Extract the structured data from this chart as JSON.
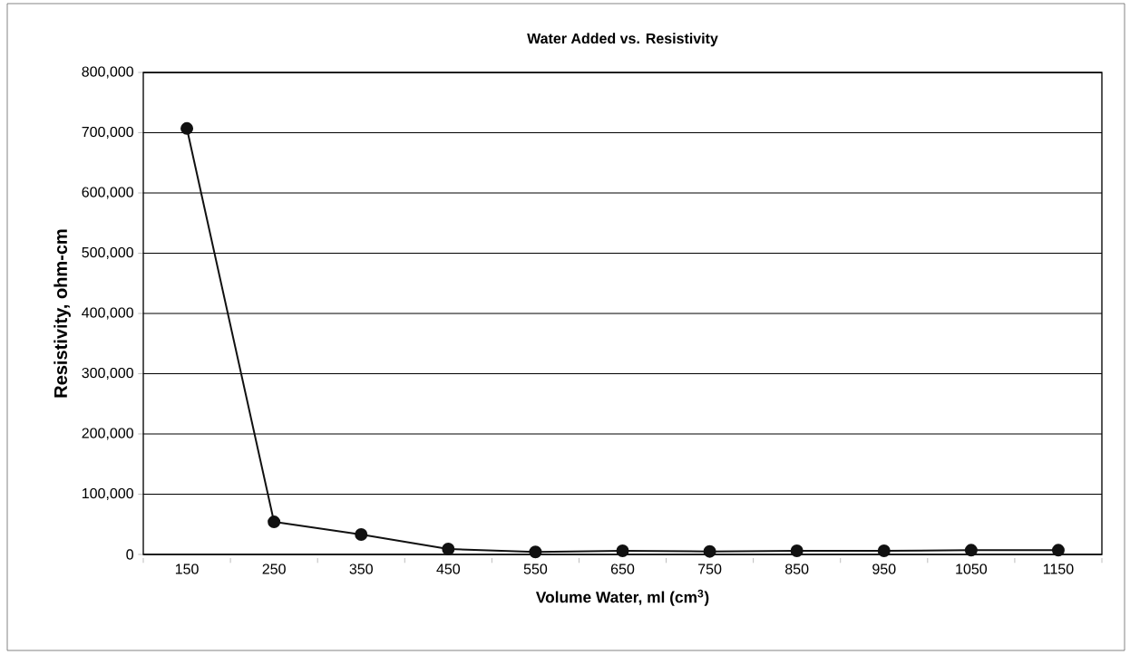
{
  "chart_data": {
    "type": "line",
    "title": "Water Added vs. Resistivity",
    "xlabel": "Volume Water, ml (cm$^{3}$)",
    "ylabel": "Resistivity, ohm-cm",
    "categories": [
      "150",
      "250",
      "350",
      "450",
      "550",
      "650",
      "750",
      "850",
      "950",
      "1050",
      "1150"
    ],
    "series": [
      {
        "color": "#111111",
        "values": [
          707000,
          54000,
          33000,
          9000,
          4000,
          6000,
          5000,
          6000,
          6000,
          7000,
          7000
        ]
      }
    ],
    "ylim": [
      0,
      800000
    ],
    "yticks": [
      {
        "value": 0,
        "label": "0"
      },
      {
        "value": 100000,
        "label": "100,000"
      },
      {
        "value": 200000,
        "label": "200,000"
      },
      {
        "value": 300000,
        "label": "300,000"
      },
      {
        "value": 400000,
        "label": "400,000"
      },
      {
        "value": 500000,
        "label": "500,000"
      },
      {
        "value": 600000,
        "label": "600,000"
      },
      {
        "value": 700000,
        "label": "700,000"
      },
      {
        "value": 800000,
        "label": "800,000"
      }
    ],
    "grid": "y",
    "marker": "circle",
    "line_style": "solid"
  }
}
